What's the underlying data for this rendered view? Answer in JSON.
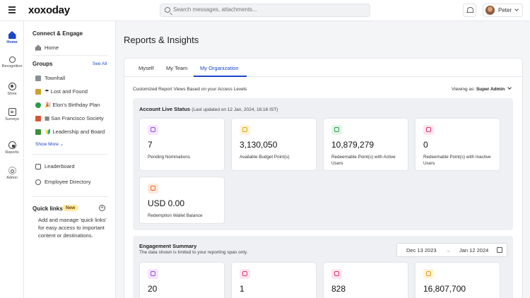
{
  "header": {
    "logo": "xoxoday",
    "search_placeholder": "Search messages, attachments...",
    "user_name": "Peter"
  },
  "rail": [
    {
      "label": "Home",
      "icon": "home-icon",
      "active": true
    },
    {
      "label": "Recognition",
      "icon": "ribbon-icon"
    },
    {
      "label": "Store",
      "icon": "store-icon"
    },
    {
      "label": "Surveys",
      "icon": "survey-icon"
    },
    {
      "label": "Reports",
      "icon": "reports-icon"
    },
    {
      "label": "Admin",
      "icon": "admin-icon"
    }
  ],
  "sidebar": {
    "connect_title": "Connect & Engage",
    "home_label": "Home",
    "groups_title": "Groups",
    "see_all": "See All",
    "groups": [
      {
        "label": "Townhall",
        "icon": "townhall-icon"
      },
      {
        "label": "☂ Lost and Found",
        "icon": "lost-found-icon"
      },
      {
        "label": "🎉 Elon's Birthday Plan",
        "icon": "birthday-group-icon"
      },
      {
        "label": "▦ San Francisco Society",
        "icon": "sf-society-icon"
      },
      {
        "label": "🔰 Leadership and Board",
        "icon": "leadership-icon"
      }
    ],
    "show_more": "Show More",
    "leaderboard": "Leaderboard",
    "directory": "Employee Directory",
    "quick_links_title": "Quick links",
    "quick_links_badge": "New",
    "quick_links_desc": "Add and manage 'quick links' for easy access to important content or destinations."
  },
  "main": {
    "title": "Reports & Insights",
    "tabs": [
      "Myself",
      "My Team",
      "My Organization"
    ],
    "active_tab": "My Organization",
    "subtext": "Customized Report Views Based on your Access Levels",
    "viewing_prefix": "Viewing as:",
    "viewing_role": "Super Admin",
    "live_status": {
      "title": "Account Live Status",
      "updated": "(Last updated on 12 Jan, 2024, 16:16 IST)",
      "stats": [
        {
          "value": "7",
          "label": "Pending Nominations",
          "color": "#a24ad6",
          "icon": "trophy-icon"
        },
        {
          "value": "3,130,050",
          "label": "Available Budget Point(s)",
          "color": "#e0a21a",
          "icon": "budget-icon"
        },
        {
          "value": "10,879,279",
          "label": "Redeemable Point(s) with Active Users",
          "color": "#2e9b52",
          "icon": "active-points-icon"
        },
        {
          "value": "0",
          "label": "Redeemable Point(s) with Inactive Users",
          "color": "#d6377a",
          "icon": "inactive-points-icon"
        },
        {
          "value": "USD 0.00",
          "label": "Redemption Wallet Balance",
          "color": "#e86a2a",
          "icon": "wallet-icon"
        }
      ]
    },
    "engagement": {
      "title": "Engagement Summary",
      "note": "The data shown is limited to your reporting span only.",
      "date_from": "Dec 13 2023",
      "date_arrow": "→",
      "date_to": "Jan 12 2024",
      "stats": [
        {
          "value": "20",
          "color": "#a24ad6",
          "icon": "trophy-icon"
        },
        {
          "value": "1",
          "color": "#d6377a",
          "icon": "badge-icon"
        },
        {
          "value": "828",
          "color": "#d6377a",
          "icon": "gift-icon"
        },
        {
          "value": "16,807,700",
          "color": "#e0a21a",
          "icon": "points-icon"
        }
      ]
    }
  }
}
